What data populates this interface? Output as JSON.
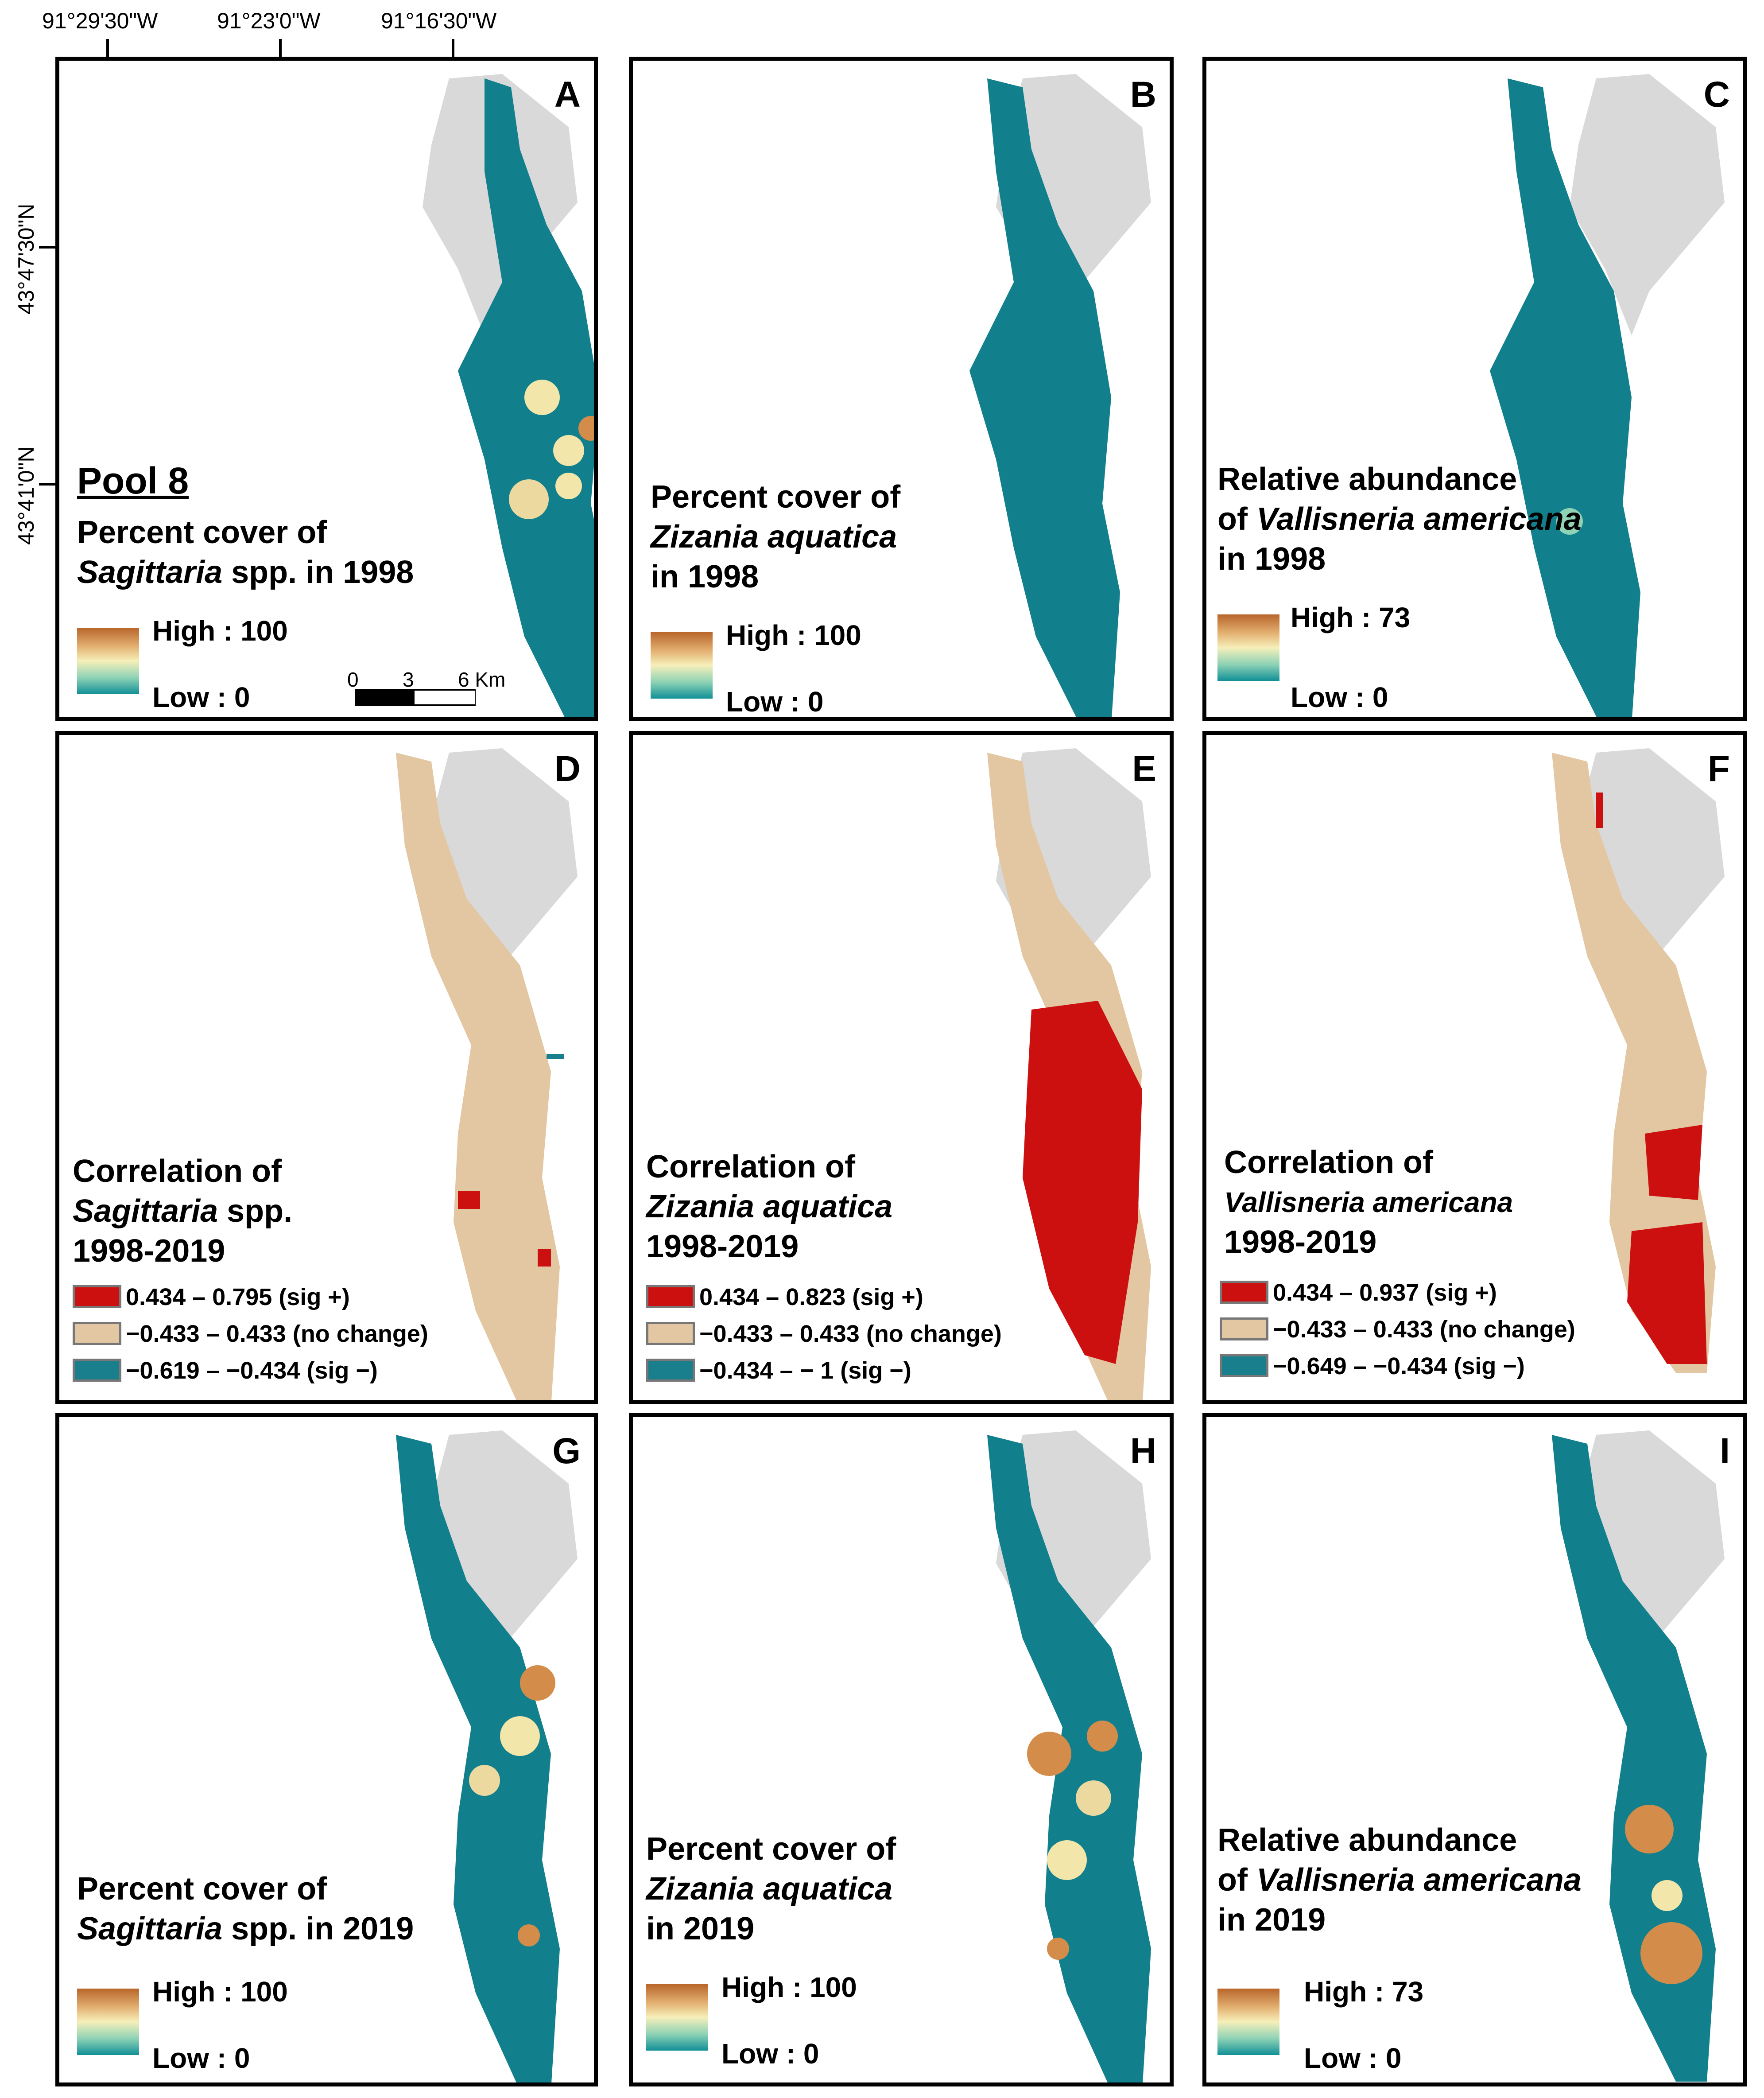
{
  "coords": {
    "lon": [
      "91°29'30\"W",
      "91°23'0\"W",
      "91°16'30\"W"
    ],
    "lat": [
      "43°47'30\"N",
      "43°41'0\"N"
    ]
  },
  "colors": {
    "water": "#117f8c",
    "land": "#d9d9d9",
    "nochange": "#e2c7a2",
    "sigpos": "#cc1010",
    "signeg": "#1a7f8c"
  },
  "panels": {
    "A": {
      "label": "A",
      "pool": "Pool 8",
      "title1": "Percent cover of",
      "title2_italic": "Sagittaria",
      "title2_rest": " spp. in 1998",
      "high": "High : 100",
      "low": "Low : 0"
    },
    "B": {
      "label": "B",
      "title1": "Percent cover of",
      "title2_italic": "Zizania aquatica",
      "title3": "in 1998",
      "high": "High : 100",
      "low": "Low : 0"
    },
    "C": {
      "label": "C",
      "title1": "Relative abundance",
      "title2_pre": "of ",
      "title2_italic": "Vallisneria americana",
      "title3": "in 1998",
      "high": "High : 73",
      "low": "Low : 0"
    },
    "D": {
      "label": "D",
      "title1": "Correlation of",
      "title2_italic": "Sagittaria",
      "title2_rest": " spp.",
      "title3": "1998-2019",
      "pos": "0.434 – 0.795 (sig +)",
      "none": "−0.433 – 0.433 (no change)",
      "neg": "−0.619 – −0.434 (sig −)"
    },
    "E": {
      "label": "E",
      "title1": "Correlation of",
      "title2_italic": "Zizania aquatica",
      "title3": "1998-2019",
      "pos": "0.434 – 0.823 (sig +)",
      "none": "−0.433 – 0.433 (no change)",
      "neg": "−0.434 – − 1 (sig −)"
    },
    "F": {
      "label": "F",
      "title1": "Correlation of",
      "title2_italic": "Vallisneria americana",
      "title3": "1998-2019",
      "pos": "0.434 – 0.937 (sig +)",
      "none": "−0.433 – 0.433 (no change)",
      "neg": "−0.649 – −0.434 (sig −)"
    },
    "G": {
      "label": "G",
      "title1": "Percent cover of",
      "title2_italic": "Sagittaria",
      "title2_rest": " spp. in 2019",
      "high": "High : 100",
      "low": "Low : 0"
    },
    "H": {
      "label": "H",
      "title1": "Percent cover of",
      "title2_italic": "Zizania aquatica",
      "title3": "in 2019",
      "high": "High : 100",
      "low": "Low : 0"
    },
    "I": {
      "label": "I",
      "title1": "Relative abundance",
      "title2_pre": "of ",
      "title2_italic": "Vallisneria americana",
      "title3": "in 2019",
      "high": "High : 73",
      "low": "Low : 0"
    }
  },
  "scalebar": {
    "t0": "0",
    "t1": "3",
    "t2": "6 Km"
  }
}
